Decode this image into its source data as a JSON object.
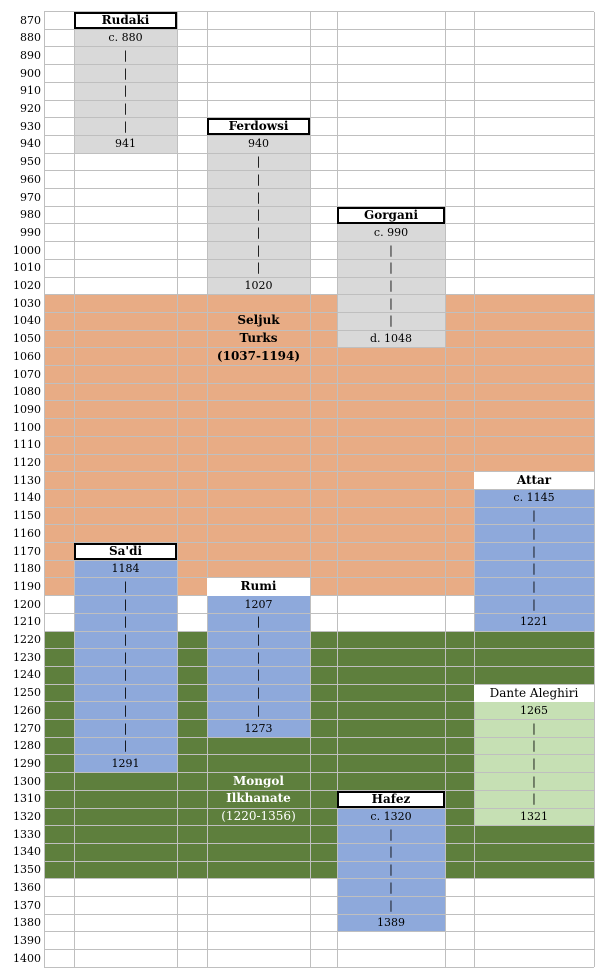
{
  "years": [
    870,
    880,
    890,
    900,
    910,
    920,
    930,
    940,
    950,
    960,
    970,
    980,
    990,
    1000,
    1010,
    1020,
    1030,
    1040,
    1050,
    1060,
    1070,
    1080,
    1090,
    1100,
    1110,
    1120,
    1130,
    1140,
    1150,
    1160,
    1170,
    1180,
    1190,
    1200,
    1210,
    1220,
    1230,
    1240,
    1250,
    1260,
    1270,
    1280,
    1290,
    1300,
    1310,
    1320,
    1330,
    1340,
    1350,
    1360,
    1370,
    1380,
    1390,
    1400
  ],
  "colors": {
    "gray": "#d9d9d9",
    "blue": "#8ea9db",
    "lightgreen": "#c6e0b4",
    "seljuk": "#e8ac85",
    "mongol": "#5e7f3d",
    "grid": "#bfbfbf"
  },
  "eras": [
    {
      "id": "seljuk",
      "lines": [
        "Seljuk",
        "Turks",
        "(1037-1194)"
      ],
      "color_key": "seljuk",
      "text_color": "#000000"
    },
    {
      "id": "mongol",
      "lines": [
        "Mongol",
        "Ilkhanate",
        "(1220-1356)"
      ],
      "color_key": "mongol",
      "text_color": "#ffffff"
    }
  ],
  "people": [
    {
      "id": "rudaki",
      "name": "Rudaki",
      "col": 1,
      "name_row": 0,
      "start_row": 1,
      "end_row": 7,
      "start_label": "c. 880",
      "end_label": "941",
      "color_key": "gray",
      "boxed": true
    },
    {
      "id": "ferdowsi",
      "name": "Ferdowsi",
      "col": 3,
      "name_row": 6,
      "start_row": 7,
      "end_row": 15,
      "start_label": "940",
      "end_label": "1020",
      "color_key": "gray",
      "boxed": true
    },
    {
      "id": "gorgani",
      "name": "Gorgani",
      "col": 5,
      "name_row": 11,
      "start_row": 12,
      "end_row": 18,
      "start_label": "c. 990",
      "end_label": "d. 1048",
      "color_key": "gray",
      "boxed": true
    },
    {
      "id": "attar",
      "name": "Attar",
      "col": 6,
      "name_row": 26,
      "start_row": 27,
      "end_row": 34,
      "start_label": "c. 1145",
      "end_label": "1221",
      "color_key": "blue",
      "boxed": false
    },
    {
      "id": "sadi",
      "name": "Sa'di",
      "col": 1,
      "name_row": 30,
      "start_row": 31,
      "end_row": 42,
      "start_label": "1184",
      "end_label": "1291",
      "color_key": "blue",
      "boxed": true
    },
    {
      "id": "rumi",
      "name": "Rumi",
      "col": 3,
      "name_row": 32,
      "start_row": 33,
      "end_row": 40,
      "start_label": "1207",
      "end_label": "1273",
      "color_key": "blue",
      "boxed": false
    },
    {
      "id": "dante",
      "name": "Dante Aleghiri",
      "col": 6,
      "name_row": 38,
      "start_row": 39,
      "end_row": 45,
      "start_label": "1265",
      "end_label": "1321",
      "color_key": "lightgreen",
      "boxed": false,
      "plain": true
    },
    {
      "id": "hafez",
      "name": "Hafez",
      "col": 5,
      "name_row": 44,
      "start_row": 45,
      "end_row": 51,
      "start_label": "c. 1320",
      "end_label": "1389",
      "color_key": "blue",
      "boxed": true
    }
  ],
  "tick": "|"
}
